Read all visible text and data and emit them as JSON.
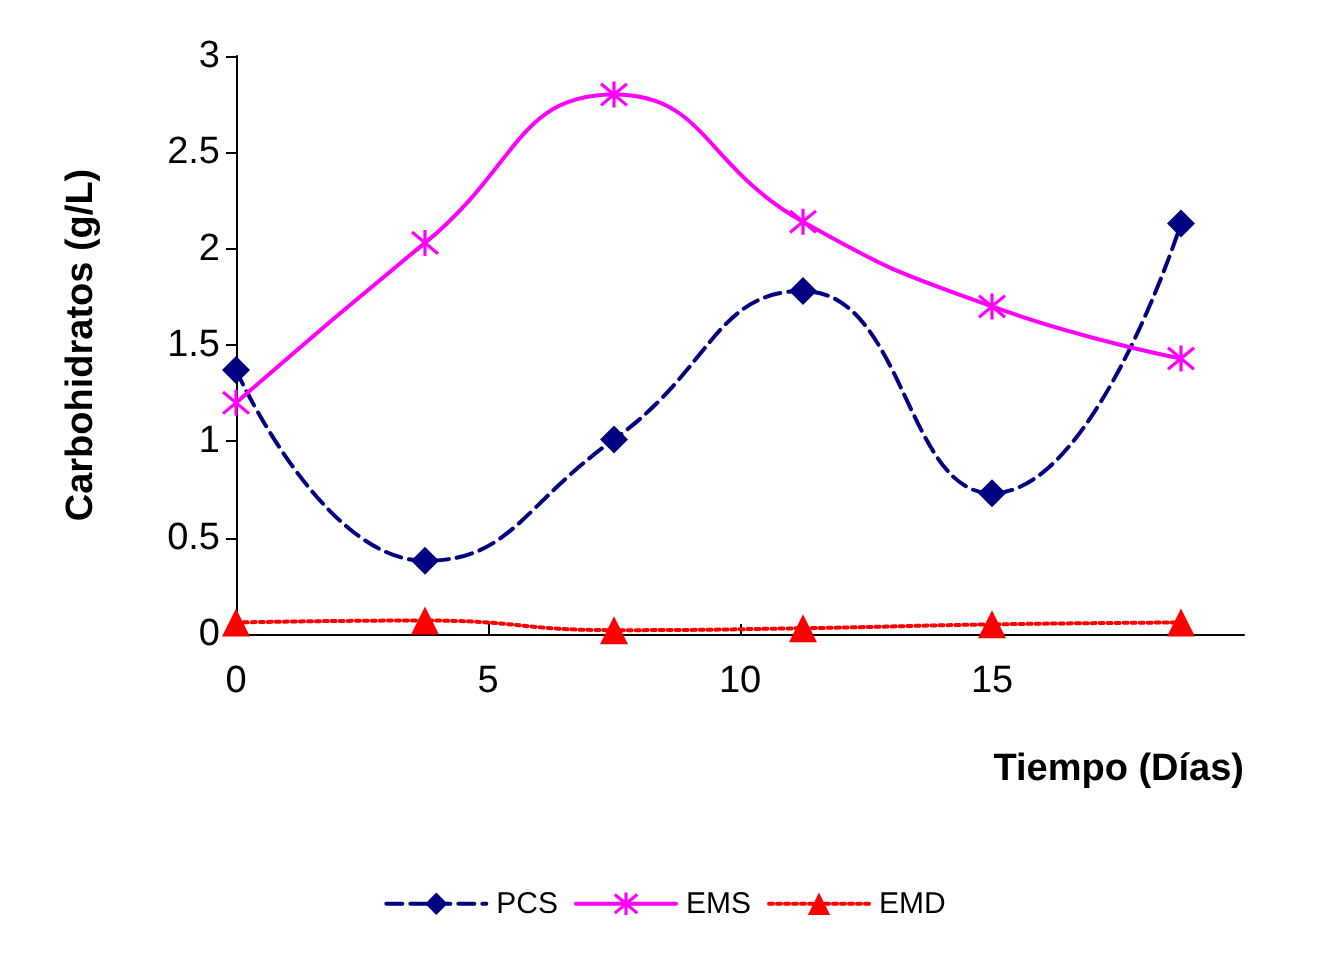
{
  "chart_data": {
    "type": "line",
    "xlabel": "Tiempo (Días)",
    "ylabel": "Carbohidratos (g/L)",
    "x": [
      0,
      3.75,
      7.5,
      11.25,
      15,
      18.75
    ],
    "xlim": [
      0,
      20
    ],
    "xticks": [
      0,
      5,
      10,
      15
    ],
    "ylim": [
      0,
      3
    ],
    "yticks": [
      0,
      0.5,
      1,
      1.5,
      2,
      2.5,
      3
    ],
    "grid": false,
    "legend": "bottom",
    "series": [
      {
        "name": "PCS",
        "color": "#000080",
        "marker": "diamond",
        "line_style": "dashed",
        "values": [
          1.37,
          0.38,
          1.01,
          1.78,
          0.73,
          2.13
        ]
      },
      {
        "name": "EMS",
        "color": "#ff00ff",
        "marker": "cross",
        "line_style": "solid",
        "values": [
          1.2,
          2.03,
          2.8,
          2.14,
          1.7,
          1.43
        ]
      },
      {
        "name": "EMD",
        "color": "#ff0000",
        "marker": "triangle",
        "line_style": "dotted",
        "values": [
          0.06,
          0.07,
          0.02,
          0.03,
          0.05,
          0.06
        ]
      }
    ]
  }
}
